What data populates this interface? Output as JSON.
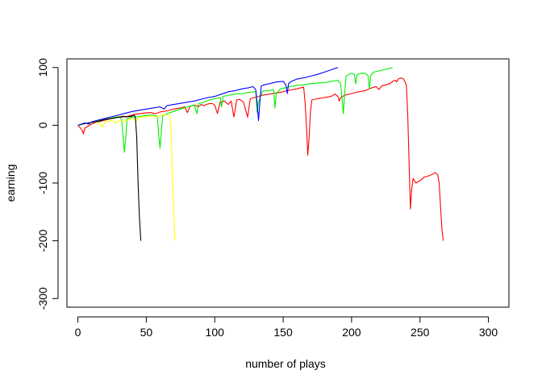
{
  "chart_data": {
    "type": "line",
    "title": "",
    "xlabel": "number of plays",
    "ylabel": "earning",
    "xlim": [
      -8,
      315
    ],
    "ylim": [
      -315,
      115
    ],
    "xticks": [
      0,
      50,
      100,
      150,
      200,
      250,
      300
    ],
    "yticks": [
      -300,
      -200,
      -100,
      0,
      100
    ],
    "grid": false,
    "legend": "none",
    "series": [
      {
        "color": "#ff0000",
        "points": [
          [
            0,
            0
          ],
          [
            3,
            -8
          ],
          [
            4,
            -15
          ],
          [
            5,
            -5
          ],
          [
            10,
            2
          ],
          [
            15,
            6
          ],
          [
            20,
            9
          ],
          [
            25,
            12
          ],
          [
            30,
            14
          ],
          [
            33,
            16
          ],
          [
            35,
            14
          ],
          [
            38,
            17
          ],
          [
            42,
            19
          ],
          [
            48,
            21
          ],
          [
            53,
            22
          ],
          [
            57,
            20
          ],
          [
            60,
            23
          ],
          [
            65,
            25
          ],
          [
            70,
            28
          ],
          [
            75,
            30
          ],
          [
            78,
            32
          ],
          [
            80,
            22
          ],
          [
            82,
            33
          ],
          [
            85,
            35
          ],
          [
            88,
            32
          ],
          [
            90,
            36
          ],
          [
            92,
            34
          ],
          [
            95,
            37
          ],
          [
            98,
            38
          ],
          [
            100,
            35
          ],
          [
            102,
            20
          ],
          [
            104,
            40
          ],
          [
            107,
            42
          ],
          [
            110,
            36
          ],
          [
            112,
            42
          ],
          [
            114,
            14
          ],
          [
            116,
            44
          ],
          [
            118,
            45
          ],
          [
            121,
            40
          ],
          [
            124,
            14
          ],
          [
            126,
            46
          ],
          [
            129,
            48
          ],
          [
            132,
            50
          ],
          [
            135,
            52
          ],
          [
            140,
            54
          ],
          [
            145,
            56
          ],
          [
            150,
            58
          ],
          [
            153,
            60
          ],
          [
            157,
            62
          ],
          [
            160,
            63
          ],
          [
            163,
            65
          ],
          [
            165,
            66
          ],
          [
            166,
            40
          ],
          [
            167,
            0
          ],
          [
            168,
            -52
          ],
          [
            169,
            -20
          ],
          [
            170,
            25
          ],
          [
            171,
            44
          ],
          [
            175,
            46
          ],
          [
            180,
            48
          ],
          [
            185,
            50
          ],
          [
            188,
            54
          ],
          [
            190,
            50
          ],
          [
            191,
            42
          ],
          [
            192,
            48
          ],
          [
            195,
            52
          ],
          [
            200,
            55
          ],
          [
            205,
            58
          ],
          [
            210,
            60
          ],
          [
            215,
            65
          ],
          [
            218,
            67
          ],
          [
            220,
            62
          ],
          [
            222,
            68
          ],
          [
            225,
            70
          ],
          [
            228,
            72
          ],
          [
            230,
            76
          ],
          [
            232,
            78
          ],
          [
            233,
            75
          ],
          [
            234,
            80
          ],
          [
            236,
            82
          ],
          [
            238,
            80
          ],
          [
            240,
            70
          ],
          [
            241,
            20
          ],
          [
            242,
            -60
          ],
          [
            243,
            -145
          ],
          [
            244,
            -110
          ],
          [
            245,
            -92
          ],
          [
            247,
            -100
          ],
          [
            250,
            -96
          ],
          [
            253,
            -90
          ],
          [
            256,
            -88
          ],
          [
            259,
            -85
          ],
          [
            261,
            -82
          ],
          [
            263,
            -86
          ],
          [
            264,
            -100
          ],
          [
            265,
            -140
          ],
          [
            266,
            -180
          ],
          [
            267,
            -200
          ]
        ]
      },
      {
        "color": "#00ee00",
        "points": [
          [
            0,
            0
          ],
          [
            5,
            3
          ],
          [
            10,
            5
          ],
          [
            15,
            8
          ],
          [
            20,
            10
          ],
          [
            25,
            13
          ],
          [
            30,
            15
          ],
          [
            32,
            10
          ],
          [
            33,
            -20
          ],
          [
            34,
            -47
          ],
          [
            35,
            -20
          ],
          [
            36,
            12
          ],
          [
            40,
            14
          ],
          [
            45,
            15
          ],
          [
            50,
            17
          ],
          [
            55,
            18
          ],
          [
            58,
            15
          ],
          [
            59,
            -15
          ],
          [
            60,
            -40
          ],
          [
            61,
            -10
          ],
          [
            62,
            16
          ],
          [
            65,
            20
          ],
          [
            70,
            24
          ],
          [
            75,
            28
          ],
          [
            80,
            32
          ],
          [
            85,
            35
          ],
          [
            87,
            20
          ],
          [
            88,
            37
          ],
          [
            92,
            40
          ],
          [
            95,
            43
          ],
          [
            100,
            46
          ],
          [
            104,
            48
          ],
          [
            105,
            32
          ],
          [
            106,
            50
          ],
          [
            110,
            52
          ],
          [
            115,
            54
          ],
          [
            120,
            55
          ],
          [
            125,
            57
          ],
          [
            130,
            58
          ],
          [
            131,
            22
          ],
          [
            132,
            40
          ],
          [
            135,
            59
          ],
          [
            140,
            60
          ],
          [
            143,
            62
          ],
          [
            144,
            30
          ],
          [
            145,
            55
          ],
          [
            148,
            63
          ],
          [
            152,
            65
          ],
          [
            155,
            67
          ],
          [
            160,
            69
          ],
          [
            165,
            70
          ],
          [
            170,
            72
          ],
          [
            175,
            73
          ],
          [
            180,
            74
          ],
          [
            185,
            76
          ],
          [
            190,
            78
          ],
          [
            192,
            72
          ],
          [
            193,
            48
          ],
          [
            194,
            20
          ],
          [
            195,
            55
          ],
          [
            196,
            85
          ],
          [
            198,
            88
          ],
          [
            200,
            90
          ],
          [
            202,
            88
          ],
          [
            203,
            72
          ],
          [
            204,
            88
          ],
          [
            207,
            90
          ],
          [
            210,
            90
          ],
          [
            212,
            86
          ],
          [
            213,
            63
          ],
          [
            214,
            86
          ],
          [
            216,
            92
          ],
          [
            220,
            94
          ],
          [
            225,
            97
          ],
          [
            230,
            100
          ]
        ]
      },
      {
        "color": "#ffff00",
        "points": [
          [
            0,
            0
          ],
          [
            5,
            3
          ],
          [
            10,
            5
          ],
          [
            15,
            5
          ],
          [
            18,
            -3
          ],
          [
            20,
            6
          ],
          [
            25,
            8
          ],
          [
            28,
            4
          ],
          [
            30,
            8
          ],
          [
            33,
            6
          ],
          [
            36,
            9
          ],
          [
            40,
            12
          ],
          [
            43,
            8
          ],
          [
            45,
            14
          ],
          [
            50,
            15
          ],
          [
            55,
            16
          ],
          [
            58,
            14
          ],
          [
            60,
            17
          ],
          [
            63,
            18
          ],
          [
            65,
            18
          ],
          [
            67,
            16
          ],
          [
            68,
            0
          ],
          [
            69,
            -80
          ],
          [
            70,
            -150
          ],
          [
            71,
            -200
          ]
        ]
      },
      {
        "color": "#000000",
        "points": [
          [
            0,
            0
          ],
          [
            5,
            3
          ],
          [
            10,
            5
          ],
          [
            15,
            7
          ],
          [
            20,
            10
          ],
          [
            25,
            12
          ],
          [
            30,
            14
          ],
          [
            35,
            15
          ],
          [
            38,
            15
          ],
          [
            40,
            16
          ],
          [
            41,
            18
          ],
          [
            42,
            14
          ],
          [
            43,
            -20
          ],
          [
            44,
            -100
          ],
          [
            45,
            -160
          ],
          [
            46,
            -200
          ]
        ]
      },
      {
        "color": "#0000ff",
        "points": [
          [
            0,
            0
          ],
          [
            5,
            4
          ],
          [
            8,
            2
          ],
          [
            10,
            6
          ],
          [
            15,
            9
          ],
          [
            20,
            12
          ],
          [
            25,
            15
          ],
          [
            30,
            18
          ],
          [
            35,
            21
          ],
          [
            40,
            24
          ],
          [
            45,
            26
          ],
          [
            50,
            28
          ],
          [
            55,
            30
          ],
          [
            60,
            32
          ],
          [
            63,
            28
          ],
          [
            65,
            34
          ],
          [
            70,
            36
          ],
          [
            75,
            38
          ],
          [
            80,
            40
          ],
          [
            85,
            42
          ],
          [
            90,
            45
          ],
          [
            95,
            48
          ],
          [
            100,
            50
          ],
          [
            105,
            54
          ],
          [
            110,
            58
          ],
          [
            115,
            60
          ],
          [
            120,
            63
          ],
          [
            125,
            65
          ],
          [
            128,
            67
          ],
          [
            130,
            62
          ],
          [
            131,
            38
          ],
          [
            132,
            8
          ],
          [
            133,
            40
          ],
          [
            134,
            68
          ],
          [
            136,
            70
          ],
          [
            140,
            72
          ],
          [
            145,
            75
          ],
          [
            150,
            76
          ],
          [
            152,
            70
          ],
          [
            153,
            55
          ],
          [
            154,
            72
          ],
          [
            156,
            76
          ],
          [
            160,
            80
          ],
          [
            165,
            82
          ],
          [
            170,
            85
          ],
          [
            175,
            88
          ],
          [
            180,
            92
          ],
          [
            185,
            96
          ],
          [
            190,
            100
          ]
        ]
      }
    ]
  }
}
